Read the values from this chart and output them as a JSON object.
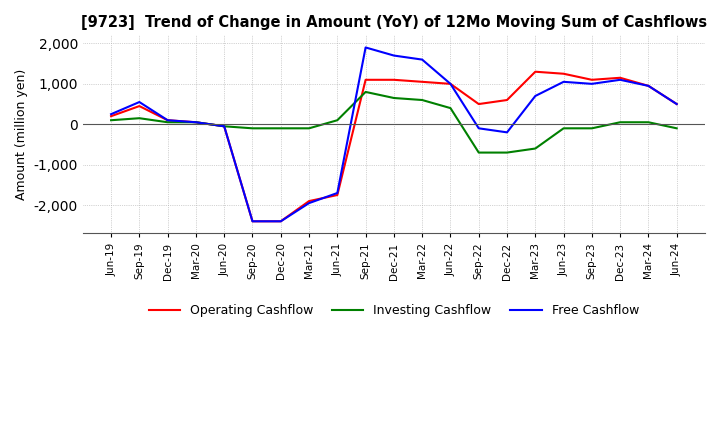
{
  "title": "[9723]  Trend of Change in Amount (YoY) of 12Mo Moving Sum of Cashflows",
  "ylabel": "Amount (million yen)",
  "ylim": [
    -2700,
    2200
  ],
  "yticks": [
    -2000,
    -1000,
    0,
    1000,
    2000
  ],
  "x_labels": [
    "Jun-19",
    "Sep-19",
    "Dec-19",
    "Mar-20",
    "Jun-20",
    "Sep-20",
    "Dec-20",
    "Mar-21",
    "Jun-21",
    "Sep-21",
    "Dec-21",
    "Mar-22",
    "Jun-22",
    "Sep-22",
    "Dec-22",
    "Mar-23",
    "Jun-23",
    "Sep-23",
    "Dec-23",
    "Mar-24",
    "Jun-24"
  ],
  "operating": [
    200,
    450,
    100,
    50,
    -50,
    -2400,
    -2400,
    -1900,
    -1750,
    1100,
    1100,
    1050,
    1000,
    500,
    600,
    1300,
    1250,
    1100,
    1150,
    950,
    500
  ],
  "investing": [
    100,
    150,
    50,
    50,
    -50,
    -100,
    -100,
    -100,
    100,
    800,
    650,
    600,
    400,
    -700,
    -700,
    -600,
    -100,
    -100,
    50,
    50,
    -100
  ],
  "free": [
    250,
    550,
    100,
    50,
    -50,
    -2400,
    -2400,
    -1950,
    -1700,
    1900,
    1700,
    1600,
    1000,
    -100,
    -200,
    700,
    1050,
    1000,
    1100,
    950,
    500
  ],
  "line_colors": {
    "operating": "#ff0000",
    "investing": "#008000",
    "free": "#0000ff"
  },
  "legend_labels": [
    "Operating Cashflow",
    "Investing Cashflow",
    "Free Cashflow"
  ],
  "background_color": "#ffffff",
  "grid_color": "#aaaaaa"
}
